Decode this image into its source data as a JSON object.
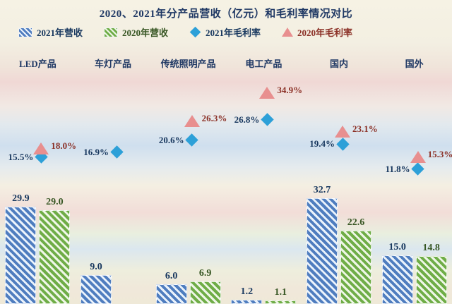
{
  "chart_data": {
    "type": "bar",
    "title": "2020、2021年分产品营收（亿元）和毛利率情况对比",
    "unit": "亿元",
    "categories": [
      "LED产品",
      "车灯产品",
      "传统照明产品",
      "电工产品",
      "国内",
      "国外"
    ],
    "bar_series": [
      {
        "name": "2021年营收",
        "color": "#4f7dbf",
        "color_light": "#eaf2fb",
        "label_color": "#17375e",
        "values": [
          29.9,
          9.0,
          6.0,
          1.2,
          32.7,
          15.0
        ]
      },
      {
        "name": "2020年营收",
        "color": "#6fad47",
        "color_light": "#eef6e6",
        "label_color": "#375623",
        "values": [
          29.0,
          null,
          6.9,
          1.1,
          22.6,
          14.8
        ]
      }
    ],
    "marker_series": [
      {
        "name": "2021年毛利率",
        "shape": "diamond",
        "color": "#2da0d8",
        "label_color": "#17375e",
        "values_pct": [
          15.5,
          16.9,
          20.6,
          26.8,
          19.4,
          11.8
        ]
      },
      {
        "name": "2020年毛利率",
        "shape": "triangle",
        "color": "#e88f8f",
        "label_color": "#8b3026",
        "values_pct": [
          18.0,
          null,
          26.3,
          34.9,
          23.1,
          15.3
        ]
      }
    ],
    "ylim_bars": [
      0,
      35
    ],
    "ylim_pct": [
      0,
      40
    ],
    "legend_position": "top",
    "grid": false
  }
}
